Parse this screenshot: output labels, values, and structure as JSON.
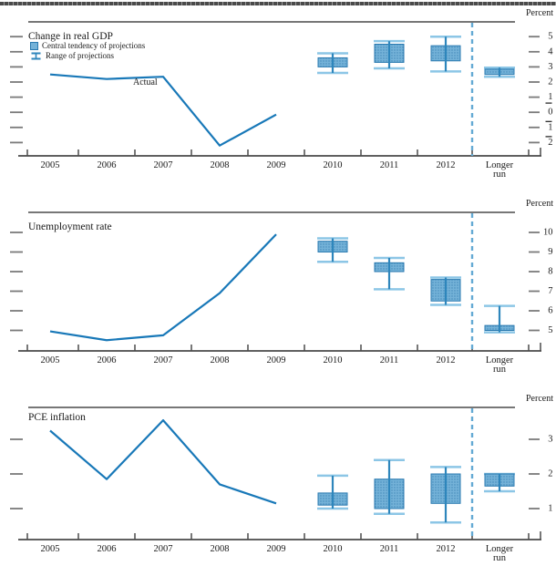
{
  "chart_data": [
    {
      "type": "line+boxwhisker",
      "title": "Change in real GDP",
      "unit_label": "Percent",
      "annotation": "Actual",
      "legend": {
        "central_tendency": "Central tendency of projections",
        "range": "Range of projections"
      },
      "categories": [
        "2005",
        "2006",
        "2007",
        "2008",
        "2009",
        "2010",
        "2011",
        "2012",
        "Longer run"
      ],
      "yticks": [
        {
          "label": "5",
          "value": 5
        },
        {
          "label": "4",
          "value": 4
        },
        {
          "label": "3",
          "value": 3
        },
        {
          "label": "2",
          "value": 2
        },
        {
          "label": "1",
          "value": 1,
          "mark": "under"
        },
        {
          "label": "0",
          "value": 0
        },
        {
          "label": "1",
          "value": -1,
          "mark": "over"
        },
        {
          "label": "2",
          "value": -2,
          "mark": "over"
        }
      ],
      "ylim": [
        -2.9,
        5.9
      ],
      "actual": {
        "x": [
          "2005",
          "2006",
          "2007",
          "2008",
          "2009"
        ],
        "values": [
          2.5,
          2.2,
          2.35,
          -2.2,
          -0.15
        ]
      },
      "projections": [
        {
          "x": "2010",
          "central_tendency": [
            3.0,
            3.6
          ],
          "range": [
            2.6,
            3.9
          ]
        },
        {
          "x": "2011",
          "central_tendency": [
            3.3,
            4.5
          ],
          "range": [
            2.9,
            4.7
          ]
        },
        {
          "x": "2012",
          "central_tendency": [
            3.4,
            4.4
          ],
          "range": [
            2.7,
            5.0
          ]
        },
        {
          "x": "Longer run",
          "central_tendency": [
            2.5,
            2.85
          ],
          "range": [
            2.35,
            2.95
          ]
        }
      ]
    },
    {
      "type": "line+boxwhisker",
      "title": "Unemployment rate",
      "unit_label": "Percent",
      "annotation": null,
      "legend": null,
      "categories": [
        "2005",
        "2006",
        "2007",
        "2008",
        "2009",
        "2010",
        "2011",
        "2012",
        "Longer run"
      ],
      "yticks": [
        {
          "label": "10",
          "value": 10
        },
        {
          "label": "9",
          "value": 9
        },
        {
          "label": "8",
          "value": 8
        },
        {
          "label": "7",
          "value": 7
        },
        {
          "label": "6",
          "value": 6
        },
        {
          "label": "5",
          "value": 5
        }
      ],
      "ylim": [
        4.0,
        10.6
      ],
      "actual": {
        "x": [
          "2005",
          "2006",
          "2007",
          "2008",
          "2009"
        ],
        "values": [
          4.95,
          4.5,
          4.75,
          6.9,
          9.9
        ]
      },
      "projections": [
        {
          "x": "2010",
          "central_tendency": [
            9.0,
            9.55
          ],
          "range": [
            8.5,
            9.7
          ]
        },
        {
          "x": "2011",
          "central_tendency": [
            8.0,
            8.45
          ],
          "range": [
            7.1,
            8.7
          ]
        },
        {
          "x": "2012",
          "central_tendency": [
            6.5,
            7.6
          ],
          "range": [
            6.3,
            7.7
          ]
        },
        {
          "x": "Longer run",
          "central_tendency": [
            5.0,
            5.25
          ],
          "range": [
            4.9,
            6.25
          ]
        }
      ]
    },
    {
      "type": "line+boxwhisker",
      "title": "PCE inflation",
      "unit_label": "Percent",
      "annotation": null,
      "legend": null,
      "categories": [
        "2005",
        "2006",
        "2007",
        "2008",
        "2009",
        "2010",
        "2011",
        "2012",
        "Longer run"
      ],
      "yticks": [
        {
          "label": "3",
          "value": 3
        },
        {
          "label": "2",
          "value": 2
        },
        {
          "label": "1",
          "value": 1
        }
      ],
      "ylim": [
        0.1,
        3.9
      ],
      "actual": {
        "x": [
          "2005",
          "2006",
          "2007",
          "2008",
          "2009"
        ],
        "values": [
          3.25,
          1.85,
          3.55,
          1.7,
          1.15
        ]
      },
      "projections": [
        {
          "x": "2010",
          "central_tendency": [
            1.1,
            1.45
          ],
          "range": [
            1.0,
            1.95
          ]
        },
        {
          "x": "2011",
          "central_tendency": [
            1.0,
            1.85
          ],
          "range": [
            0.85,
            2.4
          ]
        },
        {
          "x": "2012",
          "central_tendency": [
            1.15,
            2.0
          ],
          "range": [
            0.6,
            2.2
          ]
        },
        {
          "x": "Longer run",
          "central_tendency": [
            1.65,
            2.0
          ],
          "range": [
            1.5,
            2.0
          ]
        }
      ]
    }
  ],
  "colors": {
    "actual_line": "#1878b8",
    "box_fill": "#74b2d8",
    "box_dot": "#4186b8",
    "box_border": "#2a7ab0",
    "range_line": "#2e86bc",
    "range_cap": "#8cc6e6",
    "dashed_divider": "#64aad4",
    "axis": "#4a4a4a",
    "tick_dash": "#7a7a7a",
    "text": "#1a1a1a"
  }
}
